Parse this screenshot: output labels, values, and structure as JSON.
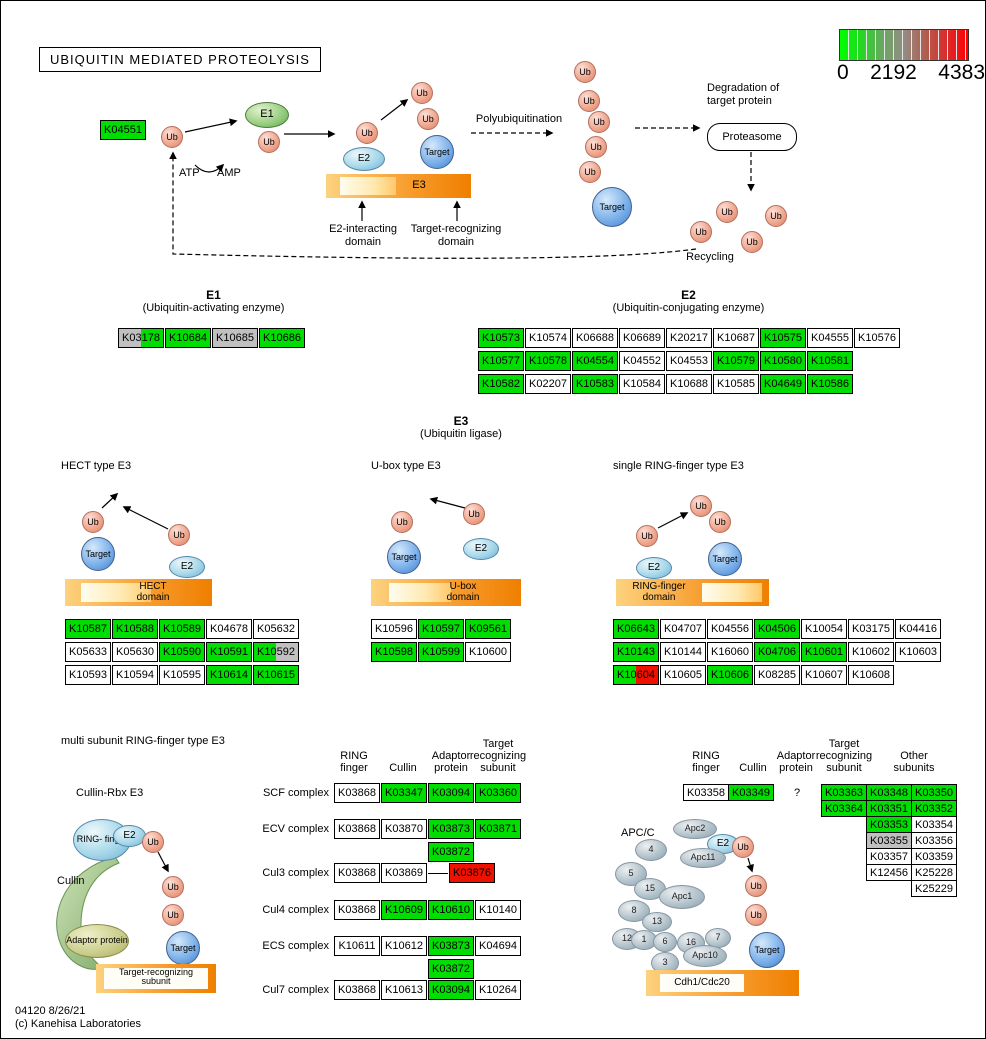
{
  "colors": {
    "green": "#00dd00",
    "red": "#ee1100",
    "gray": "#c0c0c0",
    "white": "#ffffff"
  },
  "title": "UBIQUITIN MEDIATED PROTEOLYSIS",
  "scale": {
    "min": "0",
    "mid": "2192",
    "max": "4383"
  },
  "labels": {
    "ub": "Ub",
    "target": "Target",
    "e1": "E1",
    "e2": "E2",
    "e3": "E3",
    "atp": "ATP",
    "amp": "AMP",
    "polyubiquitination": "Polyubiquitination",
    "degradation": "Degradation of target protein",
    "proteasome": "Proteasome",
    "recycling": "Recycling",
    "e2_interacting": "E2-interacting domain",
    "target_recognizing": "Target-recognizing domain"
  },
  "sections": {
    "e1": {
      "title": "E1",
      "subtitle": "(Ubiquitin-activating enzyme)"
    },
    "e2": {
      "title": "E2",
      "subtitle": "(Ubiquitin-conjugating enzyme)"
    },
    "e3": {
      "title": "E3",
      "subtitle": "(Ubiquitin ligase)"
    },
    "hect": {
      "label": "HECT type E3",
      "domain": "HECT domain"
    },
    "ubox": {
      "label": "U-box type E3",
      "domain": "U-box domain"
    },
    "ring": {
      "label": "single RING-finger type E3",
      "domain": "RING-finger domain"
    },
    "multi": {
      "label": "multi subunit RING-finger type E3",
      "cullin_rbx": "Cullin-Rbx E3",
      "ring_finger": "RING- finger",
      "cullin": "Cullin",
      "adaptor": "Adaptor protein",
      "bar": "Target-recognizing subunit"
    }
  },
  "grids": {
    "k04551": [
      [
        {
          "t": "K04551",
          "c": "green"
        }
      ]
    ],
    "e1": [
      [
        {
          "t": "K03178",
          "c": "gray|green"
        },
        {
          "t": "K10684",
          "c": "green"
        },
        {
          "t": "K10685",
          "c": "gray"
        },
        {
          "t": "K10686",
          "c": "green"
        }
      ]
    ],
    "e2": [
      [
        {
          "t": "K10573",
          "c": "green"
        },
        {
          "t": "K10574"
        },
        {
          "t": "K06688"
        },
        {
          "t": "K06689"
        },
        {
          "t": "K20217"
        },
        {
          "t": "K10687"
        },
        {
          "t": "K10575",
          "c": "green"
        },
        {
          "t": "K04555"
        },
        {
          "t": "K10576"
        }
      ],
      [
        {
          "t": "K10577",
          "c": "green"
        },
        {
          "t": "K10578",
          "c": "green"
        },
        {
          "t": "K04554",
          "c": "green"
        },
        {
          "t": "K04552"
        },
        {
          "t": "K04553"
        },
        {
          "t": "K10579",
          "c": "green"
        },
        {
          "t": "K10580",
          "c": "green"
        },
        {
          "t": "K10581",
          "c": "green"
        }
      ],
      [
        {
          "t": "K10582",
          "c": "green"
        },
        {
          "t": "K02207"
        },
        {
          "t": "K10583",
          "c": "green"
        },
        {
          "t": "K10584"
        },
        {
          "t": "K10688"
        },
        {
          "t": "K10585"
        },
        {
          "t": "K04649",
          "c": "green"
        },
        {
          "t": "K10586",
          "c": "green"
        }
      ]
    ],
    "hect": [
      [
        {
          "t": "K10587",
          "c": "green"
        },
        {
          "t": "K10588",
          "c": "green"
        },
        {
          "t": "K10589",
          "c": "green"
        },
        {
          "t": "K04678"
        },
        {
          "t": "K05632"
        }
      ],
      [
        {
          "t": "K05633"
        },
        {
          "t": "K05630"
        },
        {
          "t": "K10590",
          "c": "green"
        },
        {
          "t": "K10591",
          "c": "green"
        },
        {
          "t": "K10592",
          "c": "green|gray"
        }
      ],
      [
        {
          "t": "K10593"
        },
        {
          "t": "K10594"
        },
        {
          "t": "K10595"
        },
        {
          "t": "K10614",
          "c": "green"
        },
        {
          "t": "K10615",
          "c": "green"
        }
      ]
    ],
    "ubox": [
      [
        {
          "t": "K10596"
        },
        {
          "t": "K10597",
          "c": "green"
        },
        {
          "t": "K09561",
          "c": "green"
        }
      ],
      [
        {
          "t": "K10598",
          "c": "green"
        },
        {
          "t": "K10599",
          "c": "green"
        },
        {
          "t": "K10600"
        }
      ]
    ],
    "ring": [
      [
        {
          "t": "K06643",
          "c": "green"
        },
        {
          "t": "K04707"
        },
        {
          "t": "K04556"
        },
        {
          "t": "K04506",
          "c": "green"
        },
        {
          "t": "K10054"
        },
        {
          "t": "K03175"
        },
        {
          "t": "K04416"
        }
      ],
      [
        {
          "t": "K10143",
          "c": "green"
        },
        {
          "t": "K10144"
        },
        {
          "t": "K16060"
        },
        {
          "t": "K04706",
          "c": "green"
        },
        {
          "t": "K10601",
          "c": "green"
        },
        {
          "t": "K10602"
        },
        {
          "t": "K10603"
        }
      ],
      [
        {
          "t": "K10604",
          "c": "green|red"
        },
        {
          "t": "K10605"
        },
        {
          "t": "K10606",
          "c": "green"
        },
        {
          "t": "K08285"
        },
        {
          "t": "K10607"
        },
        {
          "t": "K10608"
        }
      ]
    ]
  },
  "complex_table": {
    "headers": [
      "RING finger",
      "Cullin",
      "Adaptor protein",
      "Target recognizing subunit"
    ],
    "rows": [
      {
        "label": "SCF complex",
        "grid": [
          [
            {
              "t": "K03868"
            },
            {
              "t": "K03347",
              "c": "green"
            },
            {
              "t": "K03094",
              "c": "green"
            },
            {
              "t": "K03360",
              "c": "green"
            }
          ]
        ]
      },
      {
        "label": "ECV complex",
        "grid": [
          [
            {
              "t": "K03868"
            },
            {
              "t": "K03870"
            },
            {
              "t": "K03873",
              "c": "green"
            },
            {
              "t": "K03871",
              "c": "green"
            }
          ],
          [
            null,
            null,
            {
              "t": "K03872",
              "c": "green"
            }
          ]
        ]
      },
      {
        "label": "Cul3 complex",
        "grid": [
          [
            {
              "t": "K03868"
            },
            {
              "t": "K03869"
            },
            {
              "dash": true
            },
            {
              "t": "K03876",
              "c": "red"
            }
          ]
        ]
      },
      {
        "label": "Cul4 complex",
        "grid": [
          [
            {
              "t": "K03868"
            },
            {
              "t": "K10609",
              "c": "green"
            },
            {
              "t": "K10610",
              "c": "green"
            },
            {
              "t": "K10140"
            }
          ]
        ]
      },
      {
        "label": "ECS complex",
        "grid": [
          [
            {
              "t": "K10611"
            },
            {
              "t": "K10612"
            },
            {
              "t": "K03873",
              "c": "green"
            },
            {
              "t": "K04694"
            }
          ],
          [
            null,
            null,
            {
              "t": "K03872",
              "c": "green"
            }
          ]
        ]
      },
      {
        "label": "Cul7 complex",
        "grid": [
          [
            {
              "t": "K03868"
            },
            {
              "t": "K10613"
            },
            {
              "t": "K03094",
              "c": "green"
            },
            {
              "t": "K10264"
            }
          ]
        ]
      }
    ]
  },
  "apc": {
    "label": "APC/C",
    "headers": [
      "RING finger",
      "Cullin",
      "Adaptor protein",
      "Target recognizing subunit",
      "Other subunits"
    ],
    "question": "?",
    "core_grid": [
      [
        {
          "t": "K03358"
        },
        {
          "t": "K03349",
          "c": "green"
        }
      ]
    ],
    "subunit_grid": [
      [
        {
          "t": "K03363",
          "c": "green"
        },
        {
          "t": "K03348",
          "c": "green"
        },
        {
          "t": "K03350",
          "c": "green"
        }
      ],
      [
        {
          "t": "K03364",
          "c": "green"
        },
        {
          "t": "K03351",
          "c": "green"
        },
        {
          "t": "K03352",
          "c": "green"
        }
      ],
      [
        null,
        {
          "t": "K03353",
          "c": "green"
        },
        {
          "t": "K03354"
        }
      ],
      [
        null,
        {
          "t": "K03355",
          "c": "gray"
        },
        {
          "t": "K03356"
        }
      ],
      [
        null,
        {
          "t": "K03357"
        },
        {
          "t": "K03359"
        }
      ],
      [
        null,
        {
          "t": "K12456"
        },
        {
          "t": "K25228"
        }
      ],
      [
        null,
        null,
        {
          "t": "K25229"
        }
      ]
    ],
    "parts": {
      "apc1": "Apc1",
      "apc2": "Apc2",
      "apc10": "Apc10",
      "apc11": "Apc11",
      "e2": "E2",
      "cdh1": "Cdh1/Cdc20"
    },
    "numbers": [
      "4",
      "5",
      "15",
      "8",
      "13",
      "12",
      "1",
      "6",
      "16",
      "3",
      "7"
    ]
  },
  "footer": {
    "line1": "04120 8/26/21",
    "line2": "(c) Kanehisa Laboratories"
  }
}
